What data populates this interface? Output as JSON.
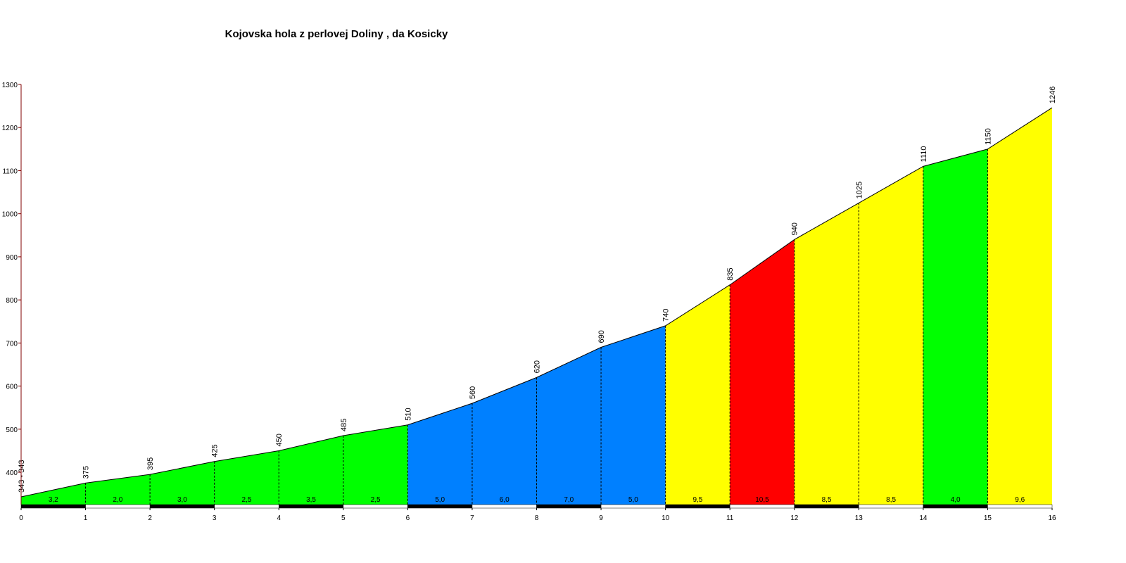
{
  "chart_data": {
    "type": "area",
    "title": "Kojovska hola z perlovej Doliny , da Kosicky",
    "x": [
      0,
      1,
      2,
      3,
      4,
      5,
      6,
      7,
      8,
      9,
      10,
      11,
      12,
      13,
      14,
      15,
      16
    ],
    "values": [
      343,
      375,
      395,
      425,
      450,
      485,
      510,
      560,
      620,
      690,
      740,
      835,
      940,
      1025,
      1110,
      1150,
      1246
    ],
    "value_labels": [
      "343 - 343",
      "375",
      "395",
      "425",
      "450",
      "485",
      "510",
      "560",
      "620",
      "690",
      "740",
      "835",
      "940",
      "1025",
      "1110",
      "1150",
      "1246"
    ],
    "segments": {
      "values": [
        3.2,
        2.0,
        3.0,
        2.5,
        3.5,
        2.5,
        5.0,
        6.0,
        7.0,
        5.0,
        9.5,
        10.5,
        8.5,
        8.5,
        4.0,
        9.6
      ],
      "value_labels": [
        "3,2",
        "2,0",
        "3,0",
        "2,5",
        "3,5",
        "2,5",
        "5,0",
        "6,0",
        "7,0",
        "5,0",
        "9,5",
        "10,5",
        "8,5",
        "8,5",
        "4,0",
        "9,6"
      ],
      "colors": [
        "#00ff00",
        "#00ff00",
        "#00ff00",
        "#00ff00",
        "#00ff00",
        "#00ff00",
        "#0080ff",
        "#0080ff",
        "#0080ff",
        "#0080ff",
        "#ffff00",
        "#ff0000",
        "#ffff00",
        "#ffff00",
        "#00ff00",
        "#ffff00"
      ]
    },
    "xlim": [
      0,
      16
    ],
    "xticks": [
      0,
      1,
      2,
      3,
      4,
      5,
      6,
      7,
      8,
      9,
      10,
      11,
      12,
      13,
      14,
      15,
      16
    ],
    "ylim": [
      325,
      1300
    ],
    "yticks": [
      400,
      500,
      600,
      700,
      800,
      900,
      1000,
      1100,
      1200,
      1300
    ]
  }
}
